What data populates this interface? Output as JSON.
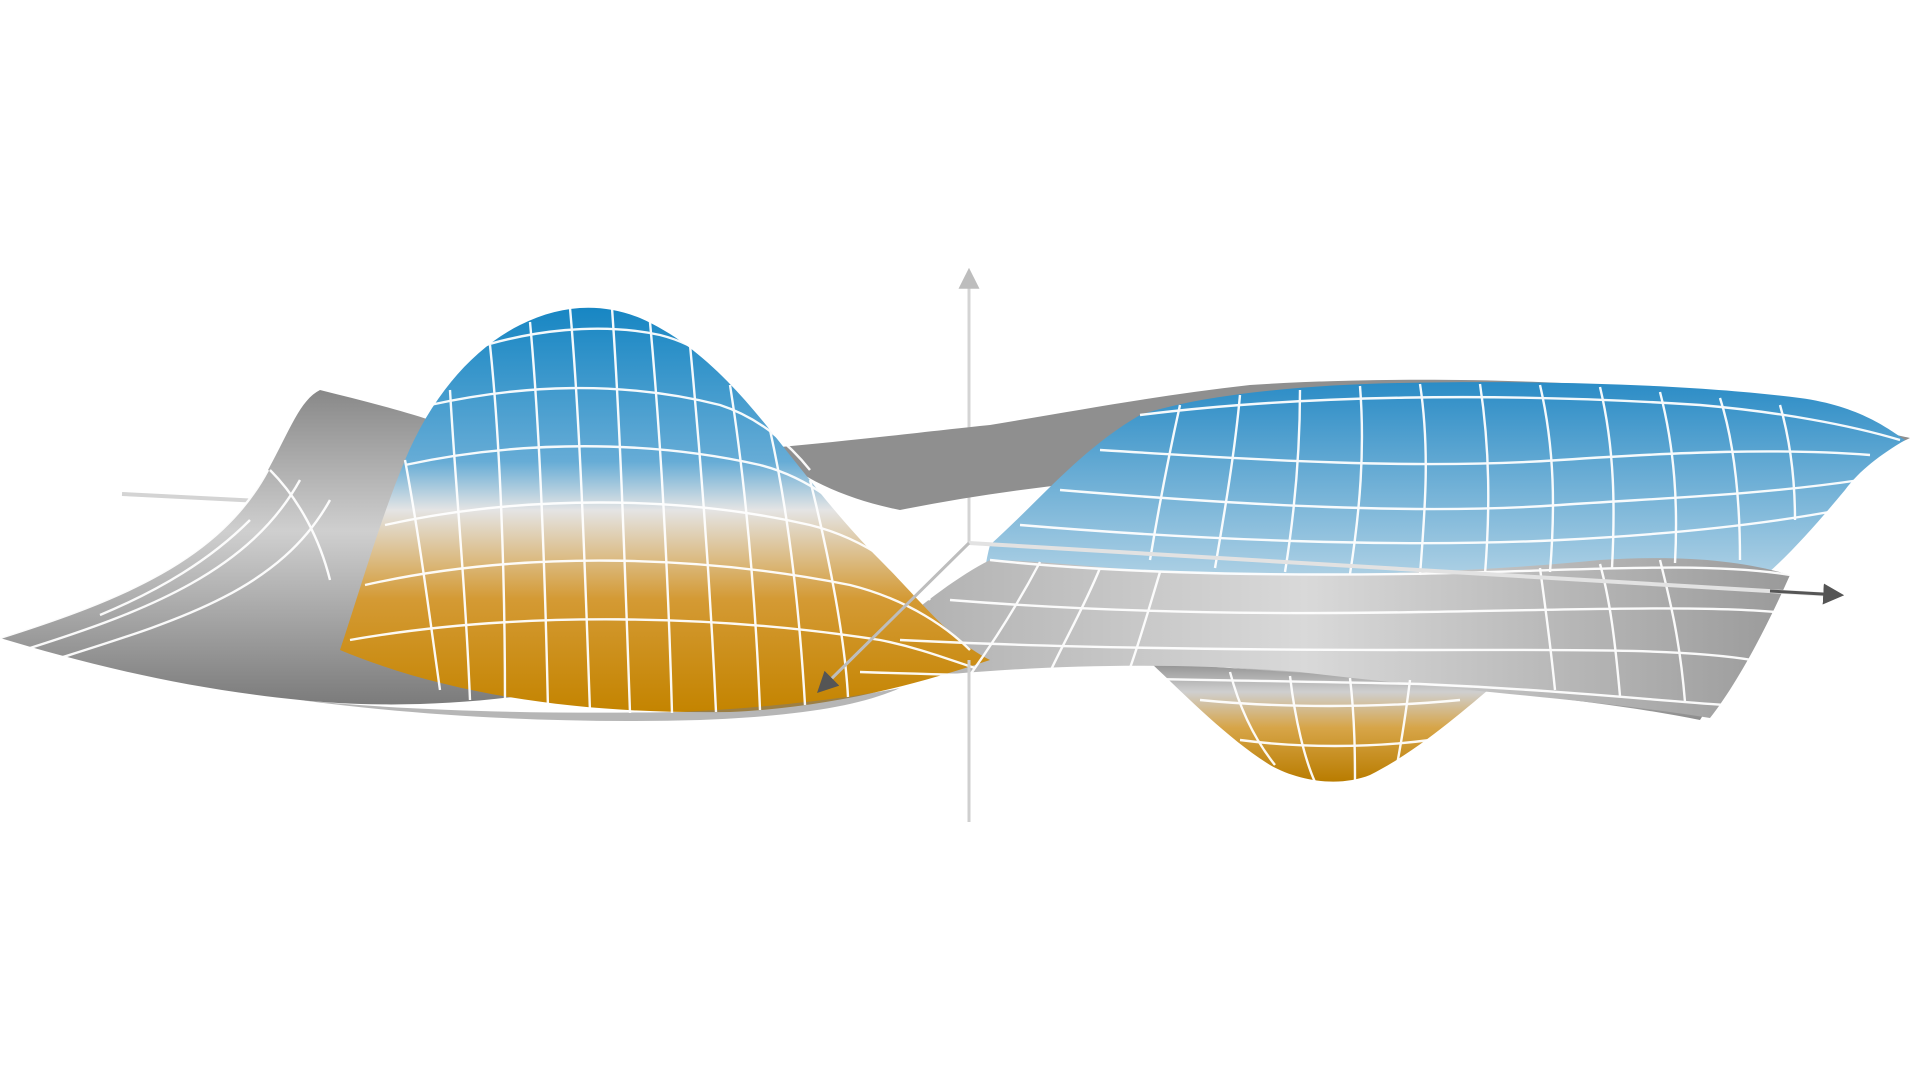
{
  "scene": {
    "kind": "3d-surface-plot",
    "surface": {
      "shape": "saddle surface with one peak and one pit",
      "peak_color": "#1a8fc9",
      "pit_color": "#c98a00",
      "neutral_color": "#9a9a9a",
      "mesh_line_color": "#ffffff"
    },
    "axes": {
      "color": "#d8d8d8",
      "arrow_color": "#555555",
      "labels_shown": false
    },
    "background": "#ffffff"
  }
}
